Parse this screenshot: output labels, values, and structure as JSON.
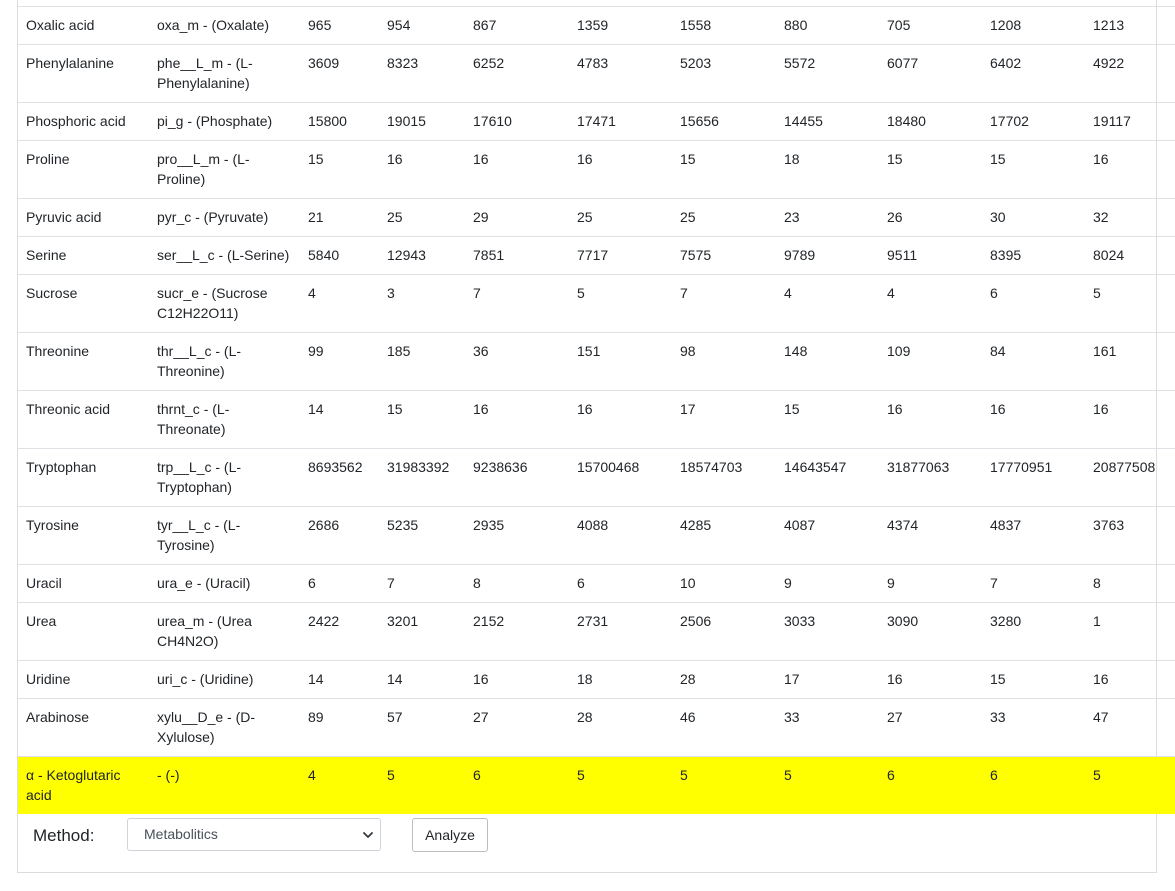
{
  "table": {
    "rows": [
      {
        "name": "Oxalic acid",
        "id": "oxa_m - (Oxalate)",
        "values": [
          "965",
          "954",
          "867",
          "1359",
          "1558",
          "880",
          "705",
          "1208",
          "1213"
        ],
        "highlighted": false
      },
      {
        "name": "Phenylalanine",
        "id": "phe__L_m - (L-Phenylalanine)",
        "values": [
          "3609",
          "8323",
          "6252",
          "4783",
          "5203",
          "5572",
          "6077",
          "6402",
          "4922"
        ],
        "highlighted": false
      },
      {
        "name": "Phosphoric acid",
        "id": "pi_g - (Phosphate)",
        "values": [
          "15800",
          "19015",
          "17610",
          "17471",
          "15656",
          "14455",
          "18480",
          "17702",
          "19117"
        ],
        "highlighted": false
      },
      {
        "name": "Proline",
        "id": "pro__L_m - (L-Proline)",
        "values": [
          "15",
          "16",
          "16",
          "16",
          "15",
          "18",
          "15",
          "15",
          "16"
        ],
        "highlighted": false
      },
      {
        "name": "Pyruvic acid",
        "id": "pyr_c - (Pyruvate)",
        "values": [
          "21",
          "25",
          "29",
          "25",
          "25",
          "23",
          "26",
          "30",
          "32"
        ],
        "highlighted": false
      },
      {
        "name": "Serine",
        "id": "ser__L_c - (L-Serine)",
        "values": [
          "5840",
          "12943",
          "7851",
          "7717",
          "7575",
          "9789",
          "9511",
          "8395",
          "8024"
        ],
        "highlighted": false
      },
      {
        "name": "Sucrose",
        "id": "sucr_e - (Sucrose C12H22O11)",
        "values": [
          "4",
          "3",
          "7",
          "5",
          "7",
          "4",
          "4",
          "6",
          "5"
        ],
        "highlighted": false
      },
      {
        "name": "Threonine",
        "id": "thr__L_c - (L-Threonine)",
        "values": [
          "99",
          "185",
          "36",
          "151",
          "98",
          "148",
          "109",
          "84",
          "161"
        ],
        "highlighted": false
      },
      {
        "name": "Threonic acid",
        "id": "thrnt_c - (L-Threonate)",
        "values": [
          "14",
          "15",
          "16",
          "16",
          "17",
          "15",
          "16",
          "16",
          "16"
        ],
        "highlighted": false
      },
      {
        "name": "Tryptophan",
        "id": "trp__L_c - (L-Tryptophan)",
        "values": [
          "8693562",
          "31983392",
          "9238636",
          "15700468",
          "18574703",
          "14643547",
          "31877063",
          "17770951",
          "20877508"
        ],
        "highlighted": false
      },
      {
        "name": "Tyrosine",
        "id": "tyr__L_c - (L-Tyrosine)",
        "values": [
          "2686",
          "5235",
          "2935",
          "4088",
          "4285",
          "4087",
          "4374",
          "4837",
          "3763"
        ],
        "highlighted": false
      },
      {
        "name": "Uracil",
        "id": "ura_e - (Uracil)",
        "values": [
          "6",
          "7",
          "8",
          "6",
          "10",
          "9",
          "9",
          "7",
          "8"
        ],
        "highlighted": false
      },
      {
        "name": "Urea",
        "id": "urea_m - (Urea CH4N2O)",
        "values": [
          "2422",
          "3201",
          "2152",
          "2731",
          "2506",
          "3033",
          "3090",
          "3280",
          "1"
        ],
        "highlighted": false
      },
      {
        "name": "Uridine",
        "id": "uri_c - (Uridine)",
        "values": [
          "14",
          "14",
          "16",
          "18",
          "28",
          "17",
          "16",
          "15",
          "16"
        ],
        "highlighted": false
      },
      {
        "name": "Arabinose",
        "id": "xylu__D_e - (D-Xylulose)",
        "values": [
          "89",
          "57",
          "27",
          "28",
          "46",
          "33",
          "27",
          "33",
          "47"
        ],
        "highlighted": false
      },
      {
        "name": "α - Ketoglutaric acid",
        "id": "- (-)",
        "values": [
          "4",
          "5",
          "6",
          "5",
          "5",
          "5",
          "6",
          "6",
          "5"
        ],
        "highlighted": true
      }
    ]
  },
  "method": {
    "label": "Method:",
    "selected": "Metabolitics",
    "analyze_label": "Analyze"
  },
  "colors": {
    "highlight": "#ffff00",
    "border": "#dee2e6"
  },
  "icons": {
    "select_arrow": "chevron-down-icon"
  }
}
